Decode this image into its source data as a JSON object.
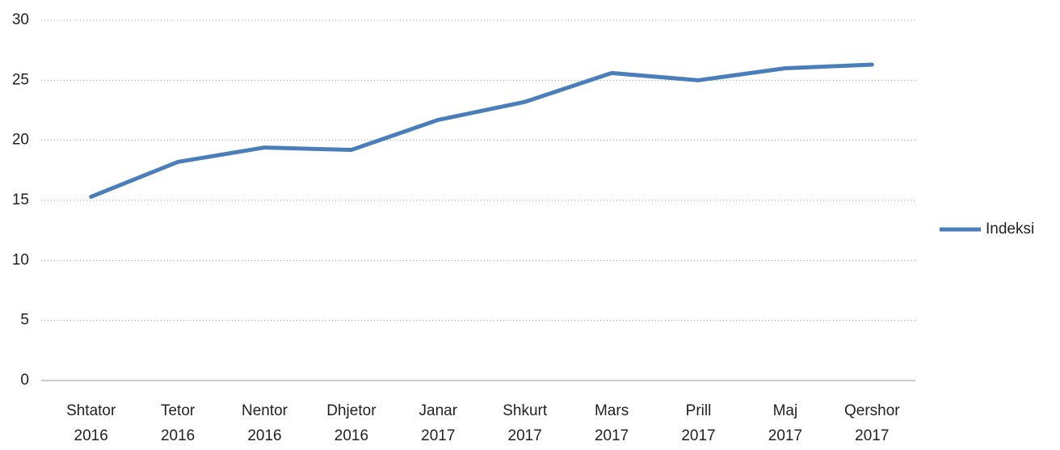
{
  "chart_data": {
    "type": "line",
    "categories": [
      "Shtator 2016",
      "Tetor 2016",
      "Nentor 2016",
      "Dhjetor 2016",
      "Janar 2017",
      "Shkurt 2017",
      "Mars 2017",
      "Prill 2017",
      "Maj 2017",
      "Qershor 2017"
    ],
    "series": [
      {
        "name": "Indeksi",
        "color": "#4a7ebb",
        "values": [
          15.3,
          18.2,
          19.4,
          19.2,
          21.7,
          23.2,
          25.6,
          25.0,
          26.0,
          26.3
        ]
      }
    ],
    "ylim": [
      0,
      30
    ],
    "yticks": [
      0,
      5,
      10,
      15,
      20,
      25,
      30
    ],
    "grid": true,
    "legend": "right"
  }
}
